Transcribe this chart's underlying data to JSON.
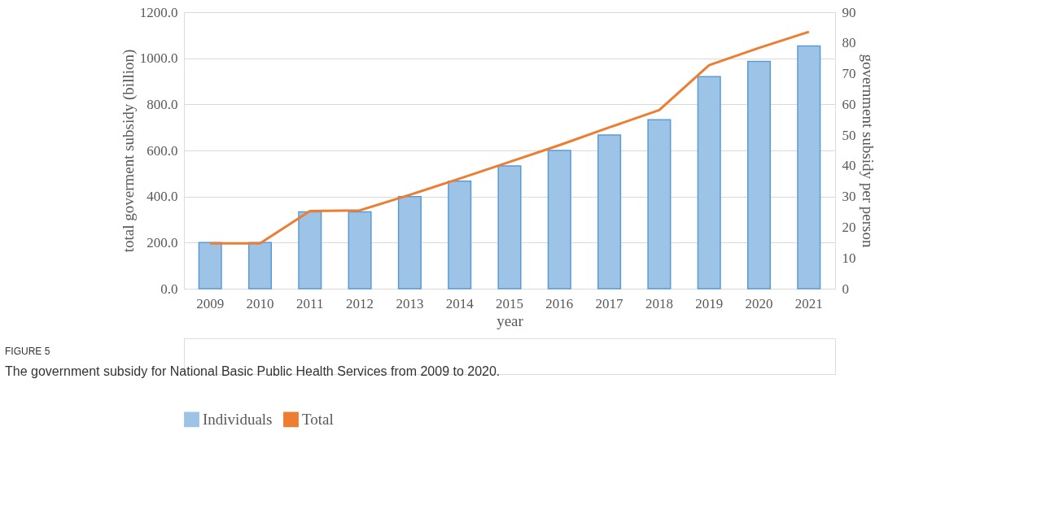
{
  "chart_data": {
    "type": "bar",
    "xlabel": "year",
    "ylabel": "total goverment subsidy (billion)",
    "y2label": "government subsidy per person",
    "categories": [
      "2009",
      "2010",
      "2011",
      "2012",
      "2013",
      "2014",
      "2015",
      "2016",
      "2017",
      "2018",
      "2019",
      "2020",
      "2021"
    ],
    "series": [
      {
        "name": "Individuals",
        "axis": "y2",
        "color": "#9dc3e6",
        "values": [
          15,
          15,
          25,
          25,
          30,
          35,
          40,
          45,
          50,
          55,
          69,
          74,
          79
        ]
      },
      {
        "name": "Total",
        "type": "line",
        "axis": "y",
        "color": "#ed7d31",
        "values": [
          197,
          197,
          337,
          340,
          407,
          478,
          550,
          623,
          700,
          775,
          970,
          1045,
          1115
        ]
      }
    ],
    "ylim": [
      0,
      1200
    ],
    "yticks": [
      {
        "value": 0,
        "label": "0.0"
      },
      {
        "value": 200,
        "label": "200.0"
      },
      {
        "value": 400,
        "label": "400.0"
      },
      {
        "value": 600,
        "label": "600.0"
      },
      {
        "value": 800,
        "label": "800.0"
      },
      {
        "value": 1000,
        "label": "1000.0"
      },
      {
        "value": 1200,
        "label": "1200.0"
      }
    ],
    "y2lim": [
      0,
      90
    ],
    "y2ticks": [
      0,
      10,
      20,
      30,
      40,
      50,
      60,
      70,
      80,
      90
    ],
    "grid": "y",
    "legend": "bottom",
    "marker": "none",
    "line_style": "solid",
    "annotations": [
      "FIGURE 5",
      "The government subsidy for National Basic Public Health Services from 2009 to 2020."
    ]
  }
}
